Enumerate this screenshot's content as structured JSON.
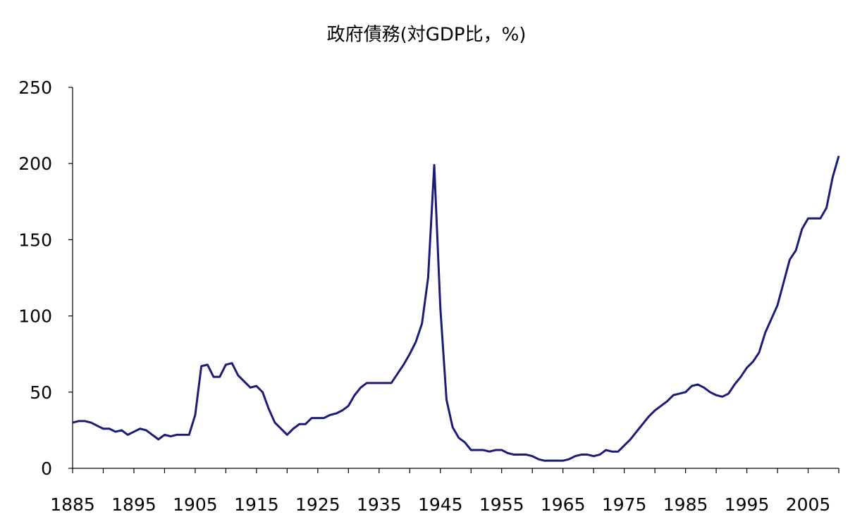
{
  "chart_data": {
    "type": "line",
    "title": "政府債務(対GDP比，%)",
    "x": [
      1885,
      1886,
      1887,
      1888,
      1889,
      1890,
      1891,
      1892,
      1893,
      1894,
      1895,
      1896,
      1897,
      1898,
      1899,
      1900,
      1901,
      1902,
      1903,
      1904,
      1905,
      1906,
      1907,
      1908,
      1909,
      1910,
      1911,
      1912,
      1913,
      1914,
      1915,
      1916,
      1917,
      1918,
      1919,
      1920,
      1921,
      1922,
      1923,
      1924,
      1925,
      1926,
      1927,
      1928,
      1929,
      1930,
      1931,
      1932,
      1933,
      1934,
      1935,
      1936,
      1937,
      1938,
      1939,
      1940,
      1941,
      1942,
      1943,
      1944,
      1945,
      1946,
      1947,
      1948,
      1949,
      1950,
      1951,
      1952,
      1953,
      1954,
      1955,
      1956,
      1957,
      1958,
      1959,
      1960,
      1961,
      1962,
      1963,
      1964,
      1965,
      1966,
      1967,
      1968,
      1969,
      1970,
      1971,
      1972,
      1973,
      1974,
      1975,
      1976,
      1977,
      1978,
      1979,
      1980,
      1981,
      1982,
      1983,
      1984,
      1985,
      1986,
      1987,
      1988,
      1989,
      1990,
      1991,
      1992,
      1993,
      1994,
      1995,
      1996,
      1997,
      1998,
      1999,
      2000,
      2001,
      2002,
      2003,
      2004,
      2005,
      2006,
      2007,
      2008,
      2009,
      2010
    ],
    "series": [
      {
        "color": "#1c1c78",
        "values": [
          30,
          31,
          31,
          30,
          28,
          26,
          26,
          24,
          25,
          22,
          24,
          26,
          25,
          22,
          19,
          22,
          21,
          22,
          22,
          22,
          35,
          67,
          68,
          60,
          60,
          68,
          69,
          61,
          57,
          53,
          54,
          50,
          39,
          30,
          26,
          22,
          26,
          29,
          29,
          33,
          33,
          33,
          35,
          36,
          38,
          41,
          48,
          53,
          56,
          56,
          56,
          56,
          56,
          62,
          68,
          75,
          83,
          95,
          125,
          199,
          105,
          45,
          27,
          20,
          17,
          12,
          12,
          12,
          11,
          12,
          12,
          10,
          9,
          9,
          9,
          8,
          6,
          5,
          5,
          5,
          5,
          6,
          8,
          9,
          9,
          8,
          9,
          12,
          11,
          11,
          15,
          19,
          24,
          29,
          34,
          38,
          41,
          44,
          48,
          49,
          50,
          54,
          55,
          53,
          50,
          48,
          47,
          49,
          55,
          60,
          66,
          70,
          76,
          89,
          98,
          107,
          122,
          137,
          143,
          157,
          164,
          164,
          164,
          171,
          191,
          205
        ]
      }
    ],
    "xlim": [
      1885,
      2010
    ],
    "xticks": [
      1885,
      1895,
      1905,
      1915,
      1925,
      1935,
      1945,
      1955,
      1965,
      1975,
      1985,
      1995,
      2005
    ],
    "xminorticks": [
      1890,
      1900,
      1910,
      1920,
      1930,
      1940,
      1950,
      1960,
      1970,
      1980,
      1990,
      2000,
      2010
    ],
    "ylim": [
      0,
      250
    ],
    "yticks": [
      0,
      50,
      100,
      150,
      200,
      250
    ],
    "grid": false
  }
}
